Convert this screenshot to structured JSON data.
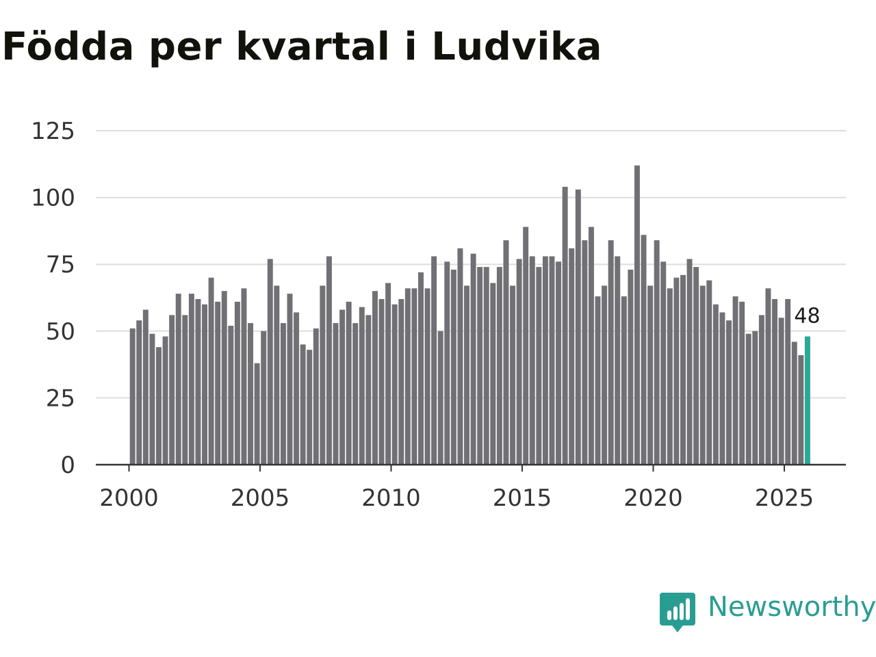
{
  "chart_data": {
    "type": "bar",
    "title": "Födda per kvartal i Ludvika",
    "xlabel": "",
    "ylabel": "",
    "ylim": [
      0,
      125
    ],
    "yticks": [
      "0",
      "25",
      "50",
      "75",
      "100",
      "125"
    ],
    "xticks": [
      "2000",
      "2005",
      "2010",
      "2015",
      "2020",
      "2025"
    ],
    "x_start": "2000-Q1",
    "x_step": "quarter",
    "grid": true,
    "colors": {
      "bar": "#717075",
      "highlight": "#2aa898",
      "grid": "#dddddd",
      "axis": "#333333"
    },
    "values": [
      51,
      54,
      58,
      49,
      44,
      48,
      56,
      64,
      56,
      64,
      62,
      60,
      70,
      61,
      65,
      52,
      61,
      66,
      53,
      38,
      50,
      77,
      67,
      53,
      64,
      57,
      45,
      43,
      51,
      67,
      78,
      53,
      58,
      61,
      53,
      59,
      56,
      65,
      62,
      68,
      60,
      62,
      66,
      66,
      72,
      66,
      78,
      50,
      76,
      73,
      81,
      67,
      79,
      74,
      74,
      68,
      74,
      84,
      67,
      77,
      89,
      78,
      74,
      78,
      78,
      76,
      104,
      81,
      103,
      84,
      89,
      63,
      67,
      84,
      78,
      63,
      73,
      112,
      86,
      67,
      84,
      76,
      66,
      70,
      71,
      77,
      74,
      67,
      69,
      60,
      57,
      54,
      63,
      61,
      49,
      50,
      56,
      66,
      62,
      55,
      62,
      46,
      41,
      48
    ],
    "highlight_last": true,
    "annotation": "48"
  },
  "logo": {
    "text": "Newsworthy",
    "icon": "newsworthy-logo-icon",
    "color": "#2a9d92"
  }
}
